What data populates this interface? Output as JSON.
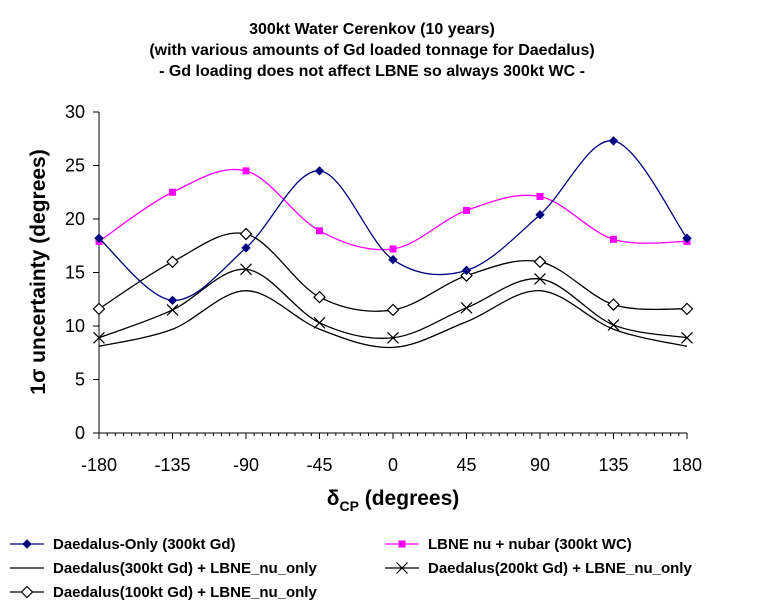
{
  "chart_data": {
    "type": "line",
    "title": [
      "300kt Water Cerenkov (10 years)",
      "(with various amounts of Gd loaded tonnage for Daedalus)",
      "- Gd loading does not affect LBNE so always 300kt WC -"
    ],
    "xlabel": {
      "main": "δ",
      "sub": "CP",
      "rest": " (degrees)"
    },
    "ylabel": "1σ uncertainty (degrees)",
    "xlim": [
      -180,
      180
    ],
    "ylim": [
      0,
      30
    ],
    "x_ticks": [
      -180,
      -135,
      -90,
      -45,
      0,
      45,
      90,
      135,
      180
    ],
    "x_tick_labels": [
      "-180",
      "-135",
      "-90",
      "-45",
      "0",
      "45",
      "90",
      "135",
      "180"
    ],
    "y_ticks": [
      0,
      5,
      10,
      15,
      20,
      25,
      30
    ],
    "y_tick_labels": [
      "0",
      "5",
      "10",
      "15",
      "20",
      "25",
      "30"
    ],
    "x": [
      -180,
      -135,
      -90,
      -45,
      0,
      45,
      90,
      135,
      180
    ],
    "series": [
      {
        "name": "Daedalus-Only (300kt Gd)",
        "color": "#000080",
        "marker": "diamond",
        "values": [
          18.2,
          12.4,
          17.3,
          24.5,
          16.2,
          15.2,
          20.4,
          27.3,
          18.2
        ]
      },
      {
        "name": "LBNE nu + nubar (300kt WC)",
        "color": "#ff00ff",
        "marker": "square",
        "values": [
          17.9,
          22.5,
          24.5,
          18.9,
          17.2,
          20.8,
          22.1,
          18.1,
          17.9
        ]
      },
      {
        "name": "Daedalus(300kt Gd) + LBNE_nu_only",
        "color": "#000000",
        "marker": "none",
        "values": [
          8.1,
          9.7,
          13.3,
          9.7,
          8.0,
          10.4,
          13.3,
          9.7,
          8.1
        ]
      },
      {
        "name": "Daedalus(200kt Gd) + LBNE_nu_only",
        "color": "#000000",
        "marker": "x",
        "values": [
          8.9,
          11.5,
          15.3,
          10.3,
          8.9,
          11.7,
          14.4,
          10.1,
          8.9
        ]
      },
      {
        "name": "Daedalus(100kt Gd) + LBNE_nu_only",
        "color": "#000000",
        "marker": "open-diamond",
        "values": [
          11.6,
          16.0,
          18.6,
          12.7,
          11.5,
          14.7,
          16.0,
          12.0,
          11.6
        ]
      }
    ],
    "legend_position": "bottom"
  }
}
